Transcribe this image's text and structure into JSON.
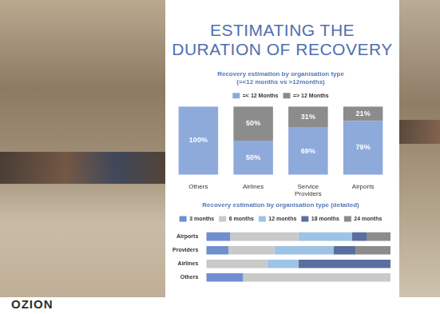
{
  "header": {
    "title_lines": [
      "ESTIMATING THE",
      "DURATION OF RECOVERY"
    ]
  },
  "footer": {
    "logo": "OZION"
  },
  "chart_data": [
    {
      "type": "bar",
      "title": "Recovery estimation by organisation type",
      "subtitle": "(=<12 months vs >12months)",
      "categories": [
        "Others",
        "Airlines",
        "Service Providers",
        "Airports"
      ],
      "series": [
        {
          "name": "=< 12 Months",
          "color": "#8eaadb",
          "values": [
            100,
            50,
            69,
            79
          ],
          "value_labels": [
            "100%",
            "50%",
            "69%",
            "79%"
          ]
        },
        {
          "name": "=> 12 Months",
          "color": "#8c8c8c",
          "values": [
            0,
            50,
            31,
            21
          ],
          "value_labels": [
            null,
            "50%",
            "31%",
            "21%"
          ]
        }
      ],
      "stacked": true,
      "data_labels": true,
      "legend": "top",
      "grid": false,
      "tick_labels": "x",
      "ylim": [
        0,
        100
      ]
    },
    {
      "type": "bar",
      "title": "Recovery estimation by organisation type (detailed)",
      "categories": [
        "Airports",
        "Providers",
        "Airlines",
        "Others"
      ],
      "series": [
        {
          "name": "3 months",
          "color": "#6f8fcf",
          "values": [
            13,
            12,
            0,
            20
          ]
        },
        {
          "name": "6 months",
          "color": "#c9c9c9",
          "values": [
            37,
            25,
            33,
            80
          ]
        },
        {
          "name": "12 months",
          "color": "#9dc3e6",
          "values": [
            29,
            32,
            17,
            0
          ]
        },
        {
          "name": "18 months",
          "color": "#5b6f9e",
          "values": [
            8,
            12,
            50,
            0
          ]
        },
        {
          "name": "24 months",
          "color": "#8c8c8c",
          "values": [
            13,
            19,
            0,
            0
          ]
        }
      ],
      "orientation": "horizontal",
      "stacked": true,
      "data_labels": false,
      "legend": "top",
      "grid": false,
      "tick_labels": "y",
      "xlim": [
        0,
        100
      ]
    }
  ]
}
